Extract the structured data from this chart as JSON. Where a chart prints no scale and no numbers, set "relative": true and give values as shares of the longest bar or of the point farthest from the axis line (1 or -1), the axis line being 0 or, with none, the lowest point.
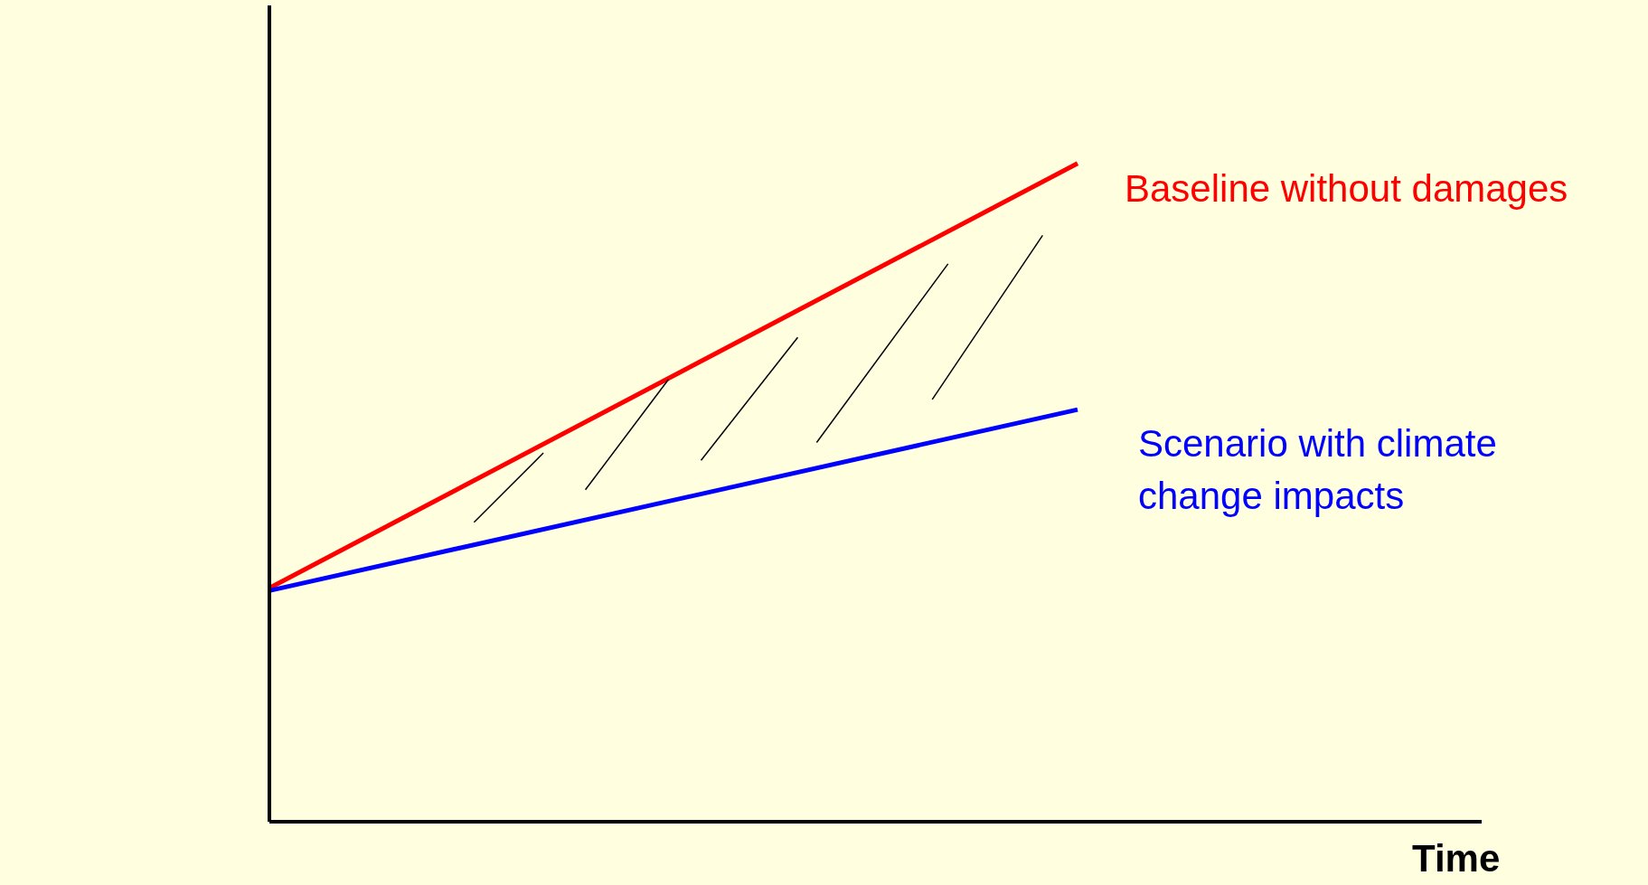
{
  "chart_data": {
    "type": "line",
    "relative": true,
    "xlabel": "Time",
    "categories": [
      null,
      null,
      null,
      null,
      null,
      null,
      null,
      null,
      null,
      null,
      null,
      null,
      null,
      null,
      null,
      null
    ],
    "series": [
      {
        "name": "Baseline without damages",
        "color": "#ff0000",
        "values": [
          0.355,
          null,
          null,
          null,
          null,
          null,
          null,
          null,
          null,
          null,
          1,
          null,
          null,
          null,
          null,
          null
        ]
      },
      {
        "name": "Scenario with climate change impacts",
        "color": "#0000ff",
        "values": [
          0.351,
          null,
          null,
          null,
          null,
          null,
          null,
          null,
          null,
          null,
          0.626,
          null,
          null,
          null,
          null,
          null
        ]
      }
    ]
  }
}
